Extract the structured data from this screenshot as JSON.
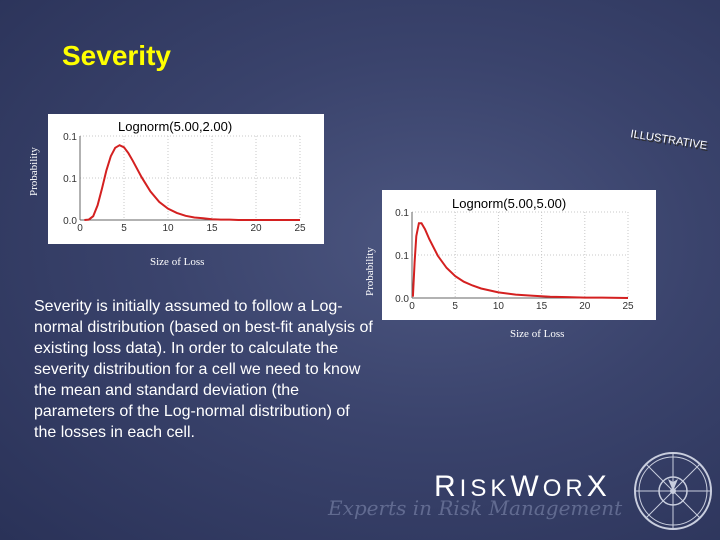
{
  "slide": {
    "title": "Severity",
    "stamp_text": "ILLUSTRATIVE",
    "body_text": "Severity is initially assumed to follow a Log-normal distribution (based on best-fit analysis of existing loss data). In order to calculate the severity distribution for a cell we need to know the mean and standard deviation (the parameters of the Log-normal distribution) of the losses in each cell.",
    "logo": {
      "name_r": "R",
      "name_isk": "ISK",
      "name_w": "W",
      "name_or": "OR",
      "name_x": "X",
      "tagline": "Experts in Risk Management"
    }
  },
  "chart_data": [
    {
      "type": "line",
      "title": "Lognorm(5.00,2.00)",
      "xlabel": "Size of Loss",
      "ylabel": "Probability",
      "xlim": [
        0,
        25
      ],
      "ylim": [
        0,
        0.2
      ],
      "x_ticks": [
        "0",
        "5",
        "10",
        "15",
        "20",
        "25"
      ],
      "y_ticks": [
        "0.0",
        "0.1",
        "0.1"
      ],
      "params": {
        "mean": 5.0,
        "sd": 2.0
      },
      "series": [
        {
          "color": "#d42020",
          "x": [
            0.5,
            1,
            1.5,
            2,
            2.5,
            3,
            3.5,
            4,
            4.5,
            5,
            5.5,
            6,
            7,
            8,
            9,
            10,
            11,
            12,
            13,
            14,
            15,
            16,
            17,
            18,
            20,
            25
          ],
          "y": [
            0.0,
            0.001,
            0.009,
            0.035,
            0.075,
            0.118,
            0.152,
            0.172,
            0.178,
            0.173,
            0.159,
            0.141,
            0.102,
            0.068,
            0.043,
            0.027,
            0.017,
            0.01,
            0.006,
            0.004,
            0.002,
            0.001,
            0.001,
            0.0,
            0.0,
            0.0
          ]
        }
      ]
    },
    {
      "type": "line",
      "title": "Lognorm(5.00,5.00)",
      "xlabel": "Size of Loss",
      "ylabel": "Probability",
      "xlim": [
        0,
        25
      ],
      "ylim": [
        0,
        0.2
      ],
      "x_ticks": [
        "0",
        "5",
        "10",
        "15",
        "20",
        "25"
      ],
      "y_ticks": [
        "0.0",
        "0.1",
        "0.1"
      ],
      "params": {
        "mean": 5.0,
        "sd": 5.0
      },
      "series": [
        {
          "color": "#d42020",
          "x": [
            0.1,
            0.3,
            0.5,
            0.8,
            1.1,
            1.5,
            2,
            3,
            4,
            5,
            6,
            7,
            8,
            10,
            12,
            14,
            16,
            18,
            20,
            22,
            25
          ],
          "y": [
            0.003,
            0.083,
            0.144,
            0.174,
            0.174,
            0.16,
            0.137,
            0.098,
            0.07,
            0.051,
            0.038,
            0.029,
            0.022,
            0.013,
            0.008,
            0.005,
            0.003,
            0.002,
            0.001,
            0.001,
            0.0
          ]
        }
      ]
    }
  ]
}
